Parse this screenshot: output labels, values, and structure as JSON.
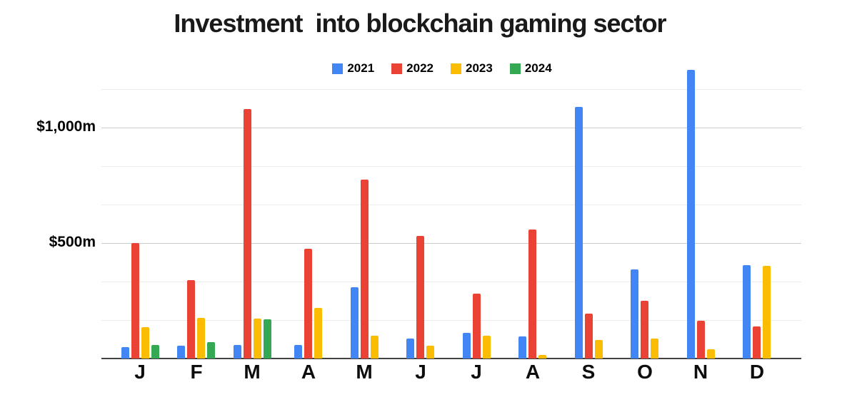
{
  "chart_data": {
    "type": "bar",
    "title": "Investment  into blockchain gaming sector",
    "categories": [
      "J",
      "F",
      "M",
      "A",
      "M",
      "J",
      "J",
      "A",
      "S",
      "O",
      "N",
      "D"
    ],
    "series": [
      {
        "name": "2021",
        "color": "#4285F4",
        "values": [
          50,
          55,
          60,
          60,
          310,
          85,
          110,
          95,
          1090,
          385,
          1250,
          405
        ]
      },
      {
        "name": "2022",
        "color": "#EA4335",
        "values": [
          500,
          340,
          1080,
          475,
          775,
          530,
          280,
          560,
          195,
          250,
          165,
          140
        ]
      },
      {
        "name": "2023",
        "color": "#FBBC04",
        "values": [
          135,
          175,
          172,
          220,
          100,
          55,
          100,
          15,
          80,
          85,
          40,
          400
        ]
      },
      {
        "name": "2024",
        "color": "#34A853",
        "values": [
          60,
          70,
          170,
          null,
          null,
          null,
          null,
          null,
          null,
          null,
          null,
          null
        ]
      }
    ],
    "y_ticks": [
      {
        "value": 500,
        "label": "$500m"
      },
      {
        "value": 1000,
        "label": "$1,000m"
      }
    ],
    "minor_gridlines": [
      166.67,
      333.33,
      666.67,
      833.33,
      1166.67
    ],
    "ylim": [
      0,
      1274
    ],
    "xlabel": "",
    "ylabel": "",
    "legend_position": "top",
    "grid": true,
    "colors": {
      "grid_minor": "#ededed",
      "grid_major": "#cccccc",
      "axis": "#424242",
      "text": "#000000",
      "background": "#ffffff"
    }
  }
}
